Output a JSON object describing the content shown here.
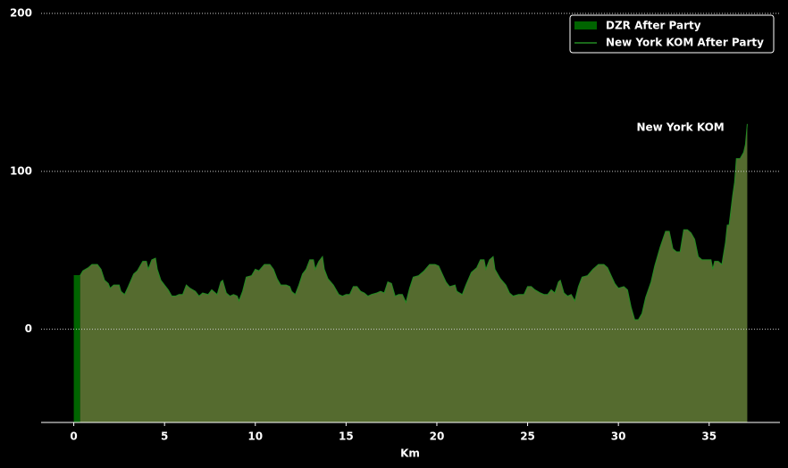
{
  "chart_data": {
    "type": "area",
    "xlabel": "Km",
    "xlim": [
      -1.8,
      38.9
    ],
    "ylim": [
      -59,
      200
    ],
    "xticks": [
      0,
      5,
      10,
      15,
      20,
      25,
      30,
      35
    ],
    "yticks": [
      0,
      100,
      200
    ],
    "grid": true,
    "legend": "upper right",
    "annotations": [
      {
        "text": "New York KOM",
        "x": 31,
        "y": 127
      }
    ],
    "series": [
      {
        "name": "DZR After Party",
        "color": "#006400",
        "fill": "#006400",
        "x": [
          0,
          0.35
        ],
        "values": [
          34,
          34
        ]
      },
      {
        "name": "New York KOM After Party",
        "color": "#228b22",
        "fill": "#556b2f",
        "x": [
          0.35,
          0.5,
          0.8,
          1.0,
          1.3,
          1.5,
          1.7,
          1.9,
          2.0,
          2.2,
          2.5,
          2.6,
          2.8,
          3.0,
          3.3,
          3.5,
          3.8,
          4.0,
          4.1,
          4.3,
          4.5,
          4.6,
          4.8,
          5.0,
          5.2,
          5.4,
          5.6,
          5.8,
          6.0,
          6.2,
          6.4,
          6.7,
          6.9,
          7.1,
          7.4,
          7.6,
          7.9,
          8.1,
          8.2,
          8.4,
          8.6,
          8.8,
          9.0,
          9.1,
          9.3,
          9.5,
          9.8,
          10.0,
          10.2,
          10.5,
          10.8,
          11.0,
          11.2,
          11.4,
          11.7,
          11.9,
          12.0,
          12.2,
          12.4,
          12.6,
          12.8,
          13.0,
          13.2,
          13.3,
          13.5,
          13.7,
          13.8,
          14.0,
          14.3,
          14.6,
          14.8,
          15.0,
          15.2,
          15.4,
          15.6,
          15.8,
          16.0,
          16.2,
          16.4,
          16.7,
          16.9,
          17.1,
          17.3,
          17.5,
          17.7,
          17.9,
          18.1,
          18.3,
          18.5,
          18.7,
          19.0,
          19.3,
          19.6,
          19.9,
          20.1,
          20.3,
          20.5,
          20.7,
          21.0,
          21.1,
          21.4,
          21.6,
          21.9,
          22.2,
          22.4,
          22.6,
          22.7,
          22.9,
          23.1,
          23.2,
          23.5,
          23.8,
          24.0,
          24.2,
          24.5,
          24.8,
          25.0,
          25.2,
          25.4,
          25.7,
          25.9,
          26.1,
          26.3,
          26.5,
          26.7,
          26.8,
          27.0,
          27.2,
          27.4,
          27.6,
          27.8,
          28.0,
          28.3,
          28.6,
          28.9,
          29.2,
          29.4,
          29.6,
          29.8,
          30.0,
          30.3,
          30.5,
          30.7,
          30.9,
          31.1,
          31.3,
          31.5,
          31.8,
          32.0,
          32.3,
          32.6,
          32.8,
          33.0,
          33.2,
          33.4,
          33.6,
          33.8,
          34.0,
          34.2,
          34.4,
          34.6,
          34.9,
          35.1,
          35.2,
          35.3,
          35.5,
          35.7,
          35.9,
          36.0,
          36.1,
          36.3,
          36.4,
          36.5,
          36.7,
          36.9,
          37.0,
          37.1
        ],
        "values": [
          34,
          37,
          39,
          41,
          41,
          38,
          31,
          29,
          26,
          28,
          28,
          24,
          22,
          27,
          35,
          37,
          43,
          43,
          38,
          44,
          45,
          38,
          31,
          28,
          25,
          21,
          21,
          22,
          22,
          28,
          26,
          24,
          21,
          23,
          22,
          25,
          22,
          30,
          31,
          23,
          21,
          22,
          21,
          18,
          24,
          33,
          34,
          38,
          37,
          41,
          41,
          38,
          32,
          28,
          28,
          27,
          24,
          22,
          28,
          35,
          38,
          44,
          44,
          38,
          43,
          46,
          38,
          32,
          28,
          22,
          21,
          22,
          22,
          27,
          27,
          24,
          23,
          21,
          22,
          23,
          24,
          23,
          30,
          29,
          21,
          22,
          22,
          17,
          26,
          33,
          34,
          37,
          41,
          41,
          40,
          35,
          30,
          27,
          28,
          24,
          22,
          28,
          36,
          39,
          44,
          44,
          38,
          44,
          46,
          38,
          32,
          28,
          23,
          21,
          22,
          22,
          27,
          27,
          25,
          23,
          22,
          22,
          25,
          23,
          30,
          31,
          23,
          21,
          22,
          18,
          27,
          33,
          34,
          38,
          41,
          41,
          39,
          34,
          29,
          26,
          27,
          25,
          14,
          6,
          6,
          10,
          20,
          30,
          40,
          52,
          62,
          62,
          51,
          49,
          49,
          63,
          63,
          61,
          57,
          46,
          44,
          44,
          44,
          38,
          43,
          43,
          41,
          55,
          66,
          66,
          85,
          93,
          108,
          108,
          112,
          117,
          130
        ]
      }
    ]
  }
}
